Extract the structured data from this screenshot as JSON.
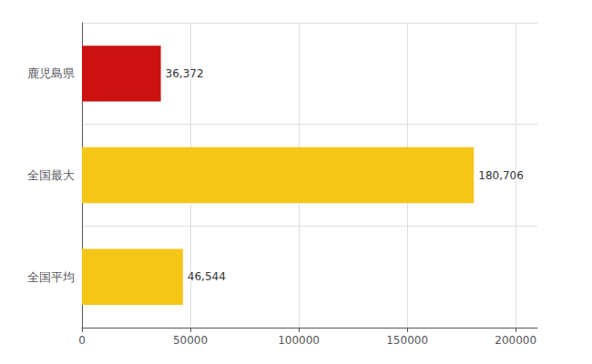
{
  "chart_data": {
    "type": "bar",
    "orientation": "horizontal",
    "categories": [
      "鹿児島県",
      "全国最大",
      "全国平均"
    ],
    "values": [
      36372,
      180706,
      46544
    ],
    "value_labels": [
      "36,372",
      "180,706",
      "46,544"
    ],
    "data_labels": true,
    "colors": [
      "#cc1111",
      "#f5c518",
      "#f5c518"
    ],
    "xlim": [
      0,
      210000
    ],
    "xticks": [
      0,
      50000,
      100000,
      150000,
      200000
    ],
    "grid": true
  }
}
